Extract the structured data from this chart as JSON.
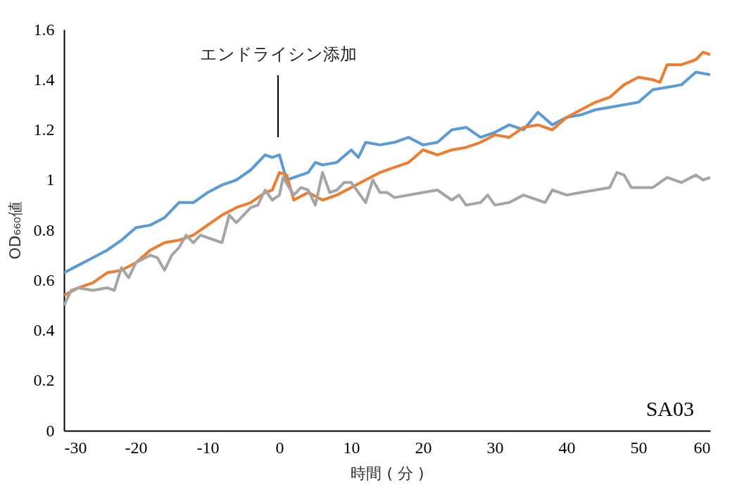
{
  "chart_data": {
    "type": "line",
    "xlabel": "時間 ( 分 )",
    "ylabel": "OD₆₆₀値",
    "xlim": [
      -30,
      60
    ],
    "xticks": [
      -30,
      -20,
      -10,
      0,
      10,
      20,
      30,
      40,
      50,
      60
    ],
    "ylim": [
      0,
      1.6
    ],
    "yticks": [
      0,
      0.2,
      0.4,
      0.6,
      0.8,
      1,
      1.2,
      1.4,
      1.6
    ],
    "grid": false,
    "legend": false,
    "annotations": [
      "エンドライシン添加",
      "SA03"
    ],
    "series": [
      {
        "color": "#5b9bd5",
        "x": [
          -30,
          -28,
          -26,
          -24,
          -22,
          -20,
          -18,
          -16,
          -14,
          -12,
          -10,
          -8,
          -6,
          -4,
          -2,
          -1,
          0,
          1,
          2,
          4,
          5,
          6,
          8,
          10,
          11,
          12,
          14,
          16,
          18,
          20,
          22,
          24,
          26,
          28,
          30,
          32,
          34,
          36,
          38,
          40,
          42,
          44,
          46,
          48,
          50,
          52,
          54,
          56,
          58,
          60
        ],
        "values": [
          0.63,
          0.66,
          0.69,
          0.72,
          0.76,
          0.81,
          0.82,
          0.85,
          0.91,
          0.91,
          0.95,
          0.98,
          1.0,
          1.04,
          1.1,
          1.09,
          1.1,
          1.0,
          1.01,
          1.03,
          1.07,
          1.06,
          1.07,
          1.12,
          1.09,
          1.15,
          1.14,
          1.15,
          1.17,
          1.14,
          1.15,
          1.2,
          1.21,
          1.17,
          1.19,
          1.22,
          1.2,
          1.27,
          1.22,
          1.25,
          1.26,
          1.28,
          1.29,
          1.3,
          1.31,
          1.36,
          1.37,
          1.38,
          1.43,
          1.42
        ]
      },
      {
        "color": "#ed7d31",
        "x": [
          -30,
          -28,
          -26,
          -24,
          -22,
          -20,
          -18,
          -16,
          -14,
          -12,
          -10,
          -8,
          -6,
          -4,
          -2,
          -1,
          0,
          1,
          2,
          4,
          6,
          8,
          10,
          12,
          14,
          16,
          18,
          20,
          22,
          24,
          26,
          28,
          30,
          32,
          34,
          36,
          38,
          40,
          42,
          44,
          46,
          48,
          50,
          52,
          53,
          54,
          56,
          58,
          59,
          60
        ],
        "values": [
          0.54,
          0.57,
          0.59,
          0.63,
          0.64,
          0.67,
          0.72,
          0.75,
          0.76,
          0.78,
          0.82,
          0.86,
          0.89,
          0.91,
          0.95,
          0.96,
          1.03,
          1.02,
          0.92,
          0.95,
          0.92,
          0.94,
          0.97,
          1.0,
          1.03,
          1.05,
          1.07,
          1.12,
          1.1,
          1.12,
          1.13,
          1.15,
          1.18,
          1.17,
          1.21,
          1.22,
          1.2,
          1.25,
          1.28,
          1.31,
          1.33,
          1.38,
          1.41,
          1.4,
          1.39,
          1.46,
          1.46,
          1.48,
          1.51,
          1.5
        ]
      },
      {
        "color": "#a5a5a5",
        "x": [
          -30,
          -29,
          -28,
          -26,
          -24,
          -23,
          -22,
          -21,
          -20,
          -18,
          -17,
          -16,
          -15,
          -14,
          -13,
          -12,
          -11,
          -9,
          -8,
          -7,
          -6,
          -4,
          -3,
          -2,
          -1,
          0,
          0.5,
          2,
          3,
          4,
          5,
          6,
          7,
          8,
          9,
          10,
          12,
          13,
          14,
          15,
          16,
          18,
          20,
          22,
          24,
          25,
          26,
          28,
          29,
          30,
          32,
          34,
          36,
          37,
          38,
          40,
          42,
          44,
          46,
          47,
          48,
          49,
          52,
          54,
          56,
          58,
          59,
          60
        ],
        "values": [
          0.5,
          0.56,
          0.57,
          0.56,
          0.57,
          0.56,
          0.65,
          0.61,
          0.67,
          0.7,
          0.69,
          0.64,
          0.7,
          0.73,
          0.78,
          0.75,
          0.78,
          0.76,
          0.75,
          0.86,
          0.83,
          0.89,
          0.9,
          0.96,
          0.92,
          0.94,
          1.01,
          0.94,
          0.97,
          0.96,
          0.9,
          1.03,
          0.95,
          0.96,
          0.99,
          0.99,
          0.91,
          1.0,
          0.95,
          0.95,
          0.93,
          0.94,
          0.95,
          0.96,
          0.92,
          0.94,
          0.9,
          0.91,
          0.94,
          0.9,
          0.91,
          0.94,
          0.92,
          0.91,
          0.96,
          0.94,
          0.95,
          0.96,
          0.97,
          1.03,
          1.02,
          0.97,
          0.97,
          1.01,
          0.99,
          1.02,
          1.0,
          1.01
        ]
      }
    ]
  }
}
